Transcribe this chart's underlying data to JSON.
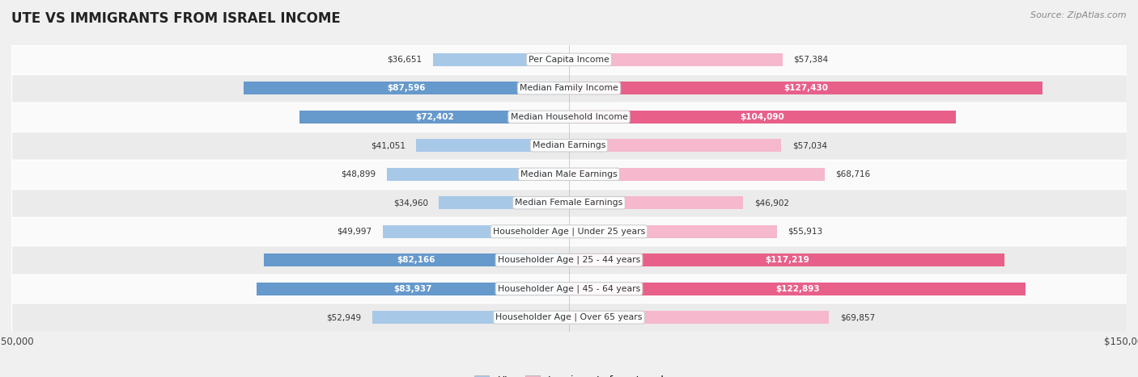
{
  "title": "Ute vs Immigrants from Israel Income",
  "source": "Source: ZipAtlas.com",
  "categories": [
    "Per Capita Income",
    "Median Family Income",
    "Median Household Income",
    "Median Earnings",
    "Median Male Earnings",
    "Median Female Earnings",
    "Householder Age | Under 25 years",
    "Householder Age | 25 - 44 years",
    "Householder Age | 45 - 64 years",
    "Householder Age | Over 65 years"
  ],
  "ute_values": [
    36651,
    87596,
    72402,
    41051,
    48899,
    34960,
    49997,
    82166,
    83937,
    52949
  ],
  "israel_values": [
    57384,
    127430,
    104090,
    57034,
    68716,
    46902,
    55913,
    117219,
    122893,
    69857
  ],
  "ute_labels": [
    "$36,651",
    "$87,596",
    "$72,402",
    "$41,051",
    "$48,899",
    "$34,960",
    "$49,997",
    "$82,166",
    "$83,937",
    "$52,949"
  ],
  "israel_labels": [
    "$57,384",
    "$127,430",
    "$104,090",
    "$57,034",
    "$68,716",
    "$46,902",
    "$55,913",
    "$117,219",
    "$122,893",
    "$69,857"
  ],
  "ute_color_light": "#a8c8e8",
  "ute_color_dark": "#6699cc",
  "israel_color_light": "#f5b8cc",
  "israel_color_dark": "#e8608a",
  "max_value": 150000,
  "legend_ute": "Ute",
  "legend_israel": "Immigrants from Israel",
  "background_color": "#f0f0f0",
  "row_bg_even": "#fafafa",
  "row_bg_odd": "#ebebeb",
  "title_color": "#222222",
  "source_color": "#888888",
  "label_dark_color": "#333333",
  "label_white_color": "#ffffff"
}
